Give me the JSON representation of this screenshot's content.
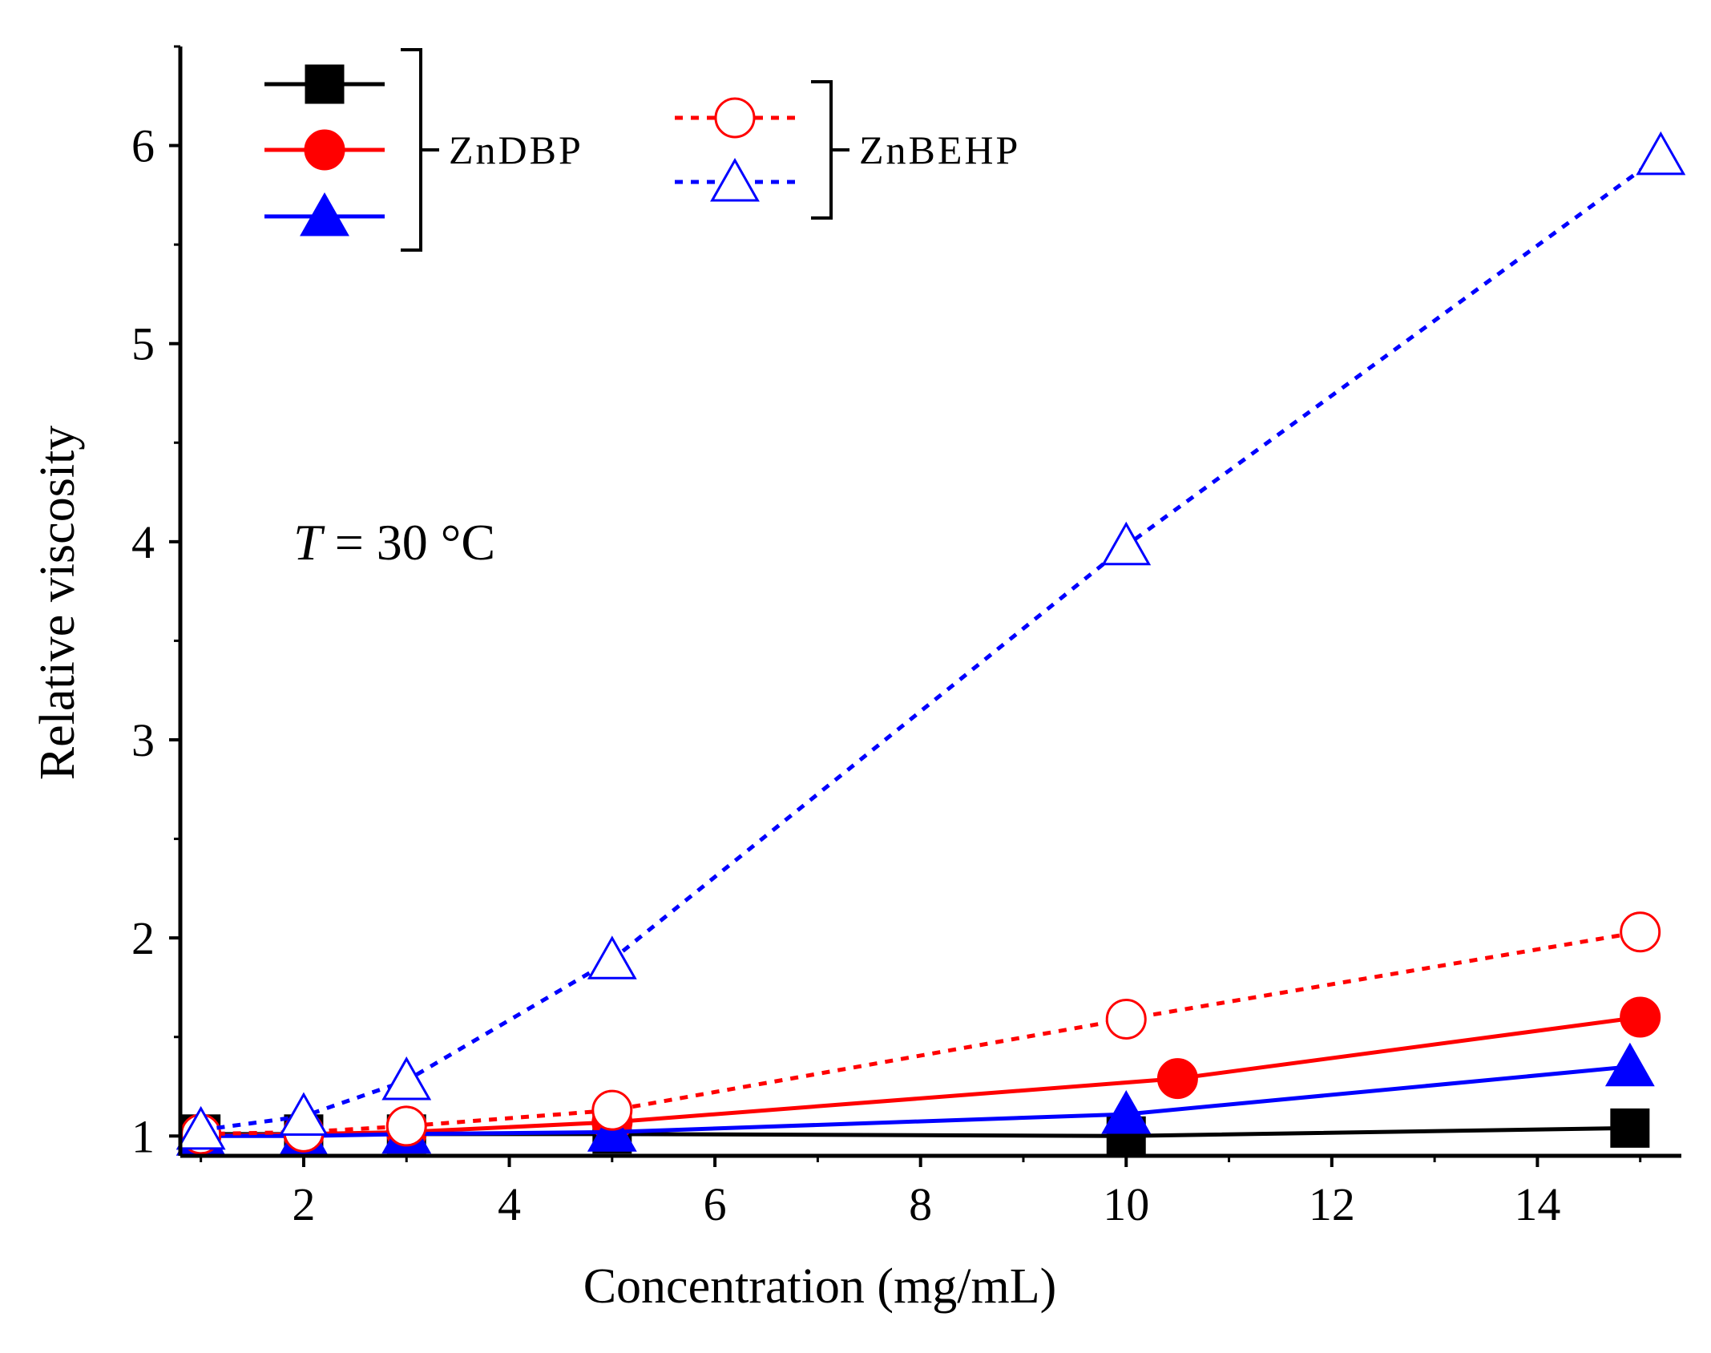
{
  "chart_data": {
    "type": "line",
    "title": "",
    "xlabel": "Concentration (mg/mL)",
    "ylabel": "Relative viscosity",
    "xlim": [
      0.8,
      15.4
    ],
    "ylim": [
      0.9,
      6.5
    ],
    "xticks": [
      2,
      4,
      6,
      8,
      10,
      12,
      14
    ],
    "yticks": [
      1,
      2,
      3,
      4,
      5,
      6
    ],
    "xtick_labels": [
      "2",
      "4",
      "6",
      "8",
      "10",
      "12",
      "14"
    ],
    "ytick_labels": [
      "1",
      "2",
      "3",
      "4",
      "5",
      "6"
    ],
    "annotation": {
      "var": "T",
      "rest": " = 30 °C",
      "x": 1.9,
      "y": 4.0
    },
    "legend_groups": [
      {
        "label": "ZnDBP",
        "placement": "top-left"
      },
      {
        "label": "ZnBEHP",
        "placement": "top-center"
      }
    ],
    "series": [
      {
        "name": "ZnDBP-black",
        "group": "ZnDBP",
        "color": "#000000",
        "marker": "square",
        "filled": true,
        "dashed": false,
        "x": [
          1,
          2,
          3,
          5,
          10,
          14.9
        ],
        "y": [
          1.01,
          1.01,
          1.01,
          1.01,
          1.0,
          1.04
        ]
      },
      {
        "name": "ZnDBP-red",
        "group": "ZnDBP",
        "color": "#ff0000",
        "marker": "circle",
        "filled": true,
        "dashed": false,
        "x": [
          1,
          2,
          3,
          5,
          10.5,
          15
        ],
        "y": [
          1.0,
          1.01,
          1.02,
          1.07,
          1.29,
          1.6
        ]
      },
      {
        "name": "ZnDBP-blue",
        "group": "ZnDBP",
        "color": "#0000ff",
        "marker": "triangle",
        "filled": true,
        "dashed": false,
        "x": [
          1,
          2,
          3,
          5,
          10,
          14.9
        ],
        "y": [
          1.0,
          1.0,
          1.01,
          1.02,
          1.11,
          1.35
        ]
      },
      {
        "name": "ZnBEHP-red",
        "group": "ZnBEHP",
        "color": "#ff0000",
        "marker": "circle",
        "filled": false,
        "dashed": true,
        "x": [
          1,
          2,
          3,
          5,
          10,
          15
        ],
        "y": [
          1.01,
          1.02,
          1.05,
          1.13,
          1.59,
          2.03
        ]
      },
      {
        "name": "ZnBEHP-blue",
        "group": "ZnBEHP",
        "color": "#0000ff",
        "marker": "triangle",
        "filled": false,
        "dashed": true,
        "x": [
          1,
          2,
          3,
          5,
          10,
          15.2
        ],
        "y": [
          1.03,
          1.1,
          1.28,
          1.89,
          3.98,
          5.95
        ]
      }
    ]
  }
}
